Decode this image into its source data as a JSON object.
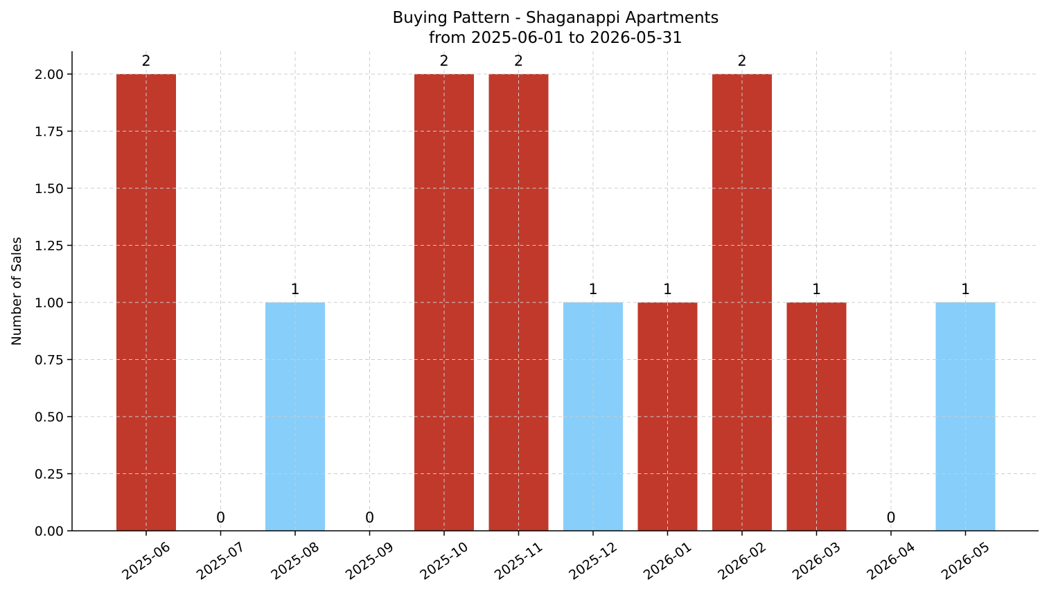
{
  "chart_data": {
    "type": "bar",
    "title": "Buying Pattern - Shaganappi Apartments",
    "subtitle": "from 2025-06-01 to 2026-05-31",
    "xlabel": "",
    "ylabel": "Number of Sales",
    "categories": [
      "2025-06",
      "2025-07",
      "2025-08",
      "2025-09",
      "2025-10",
      "2025-11",
      "2025-12",
      "2026-01",
      "2026-02",
      "2026-03",
      "2026-04",
      "2026-05"
    ],
    "values": [
      2,
      0,
      1,
      0,
      2,
      2,
      1,
      1,
      2,
      1,
      0,
      1
    ],
    "value_labels": [
      "2",
      "0",
      "1",
      "0",
      "2",
      "2",
      "1",
      "1",
      "2",
      "1",
      "0",
      "1"
    ],
    "bar_colors": [
      "#c0392b",
      "#c0392b",
      "#87cefa",
      "#c0392b",
      "#c0392b",
      "#c0392b",
      "#87cefa",
      "#c0392b",
      "#c0392b",
      "#c0392b",
      "#c0392b",
      "#87cefa"
    ],
    "ylim": [
      0,
      2.1
    ],
    "yticks": [
      0,
      0.25,
      0.5,
      0.75,
      1.0,
      1.25,
      1.5,
      1.75,
      2.0
    ],
    "ytick_labels": [
      "0.00",
      "0.25",
      "0.50",
      "0.75",
      "1.00",
      "1.25",
      "1.50",
      "1.75",
      "2.00"
    ],
    "grid": true,
    "legend": "none"
  }
}
